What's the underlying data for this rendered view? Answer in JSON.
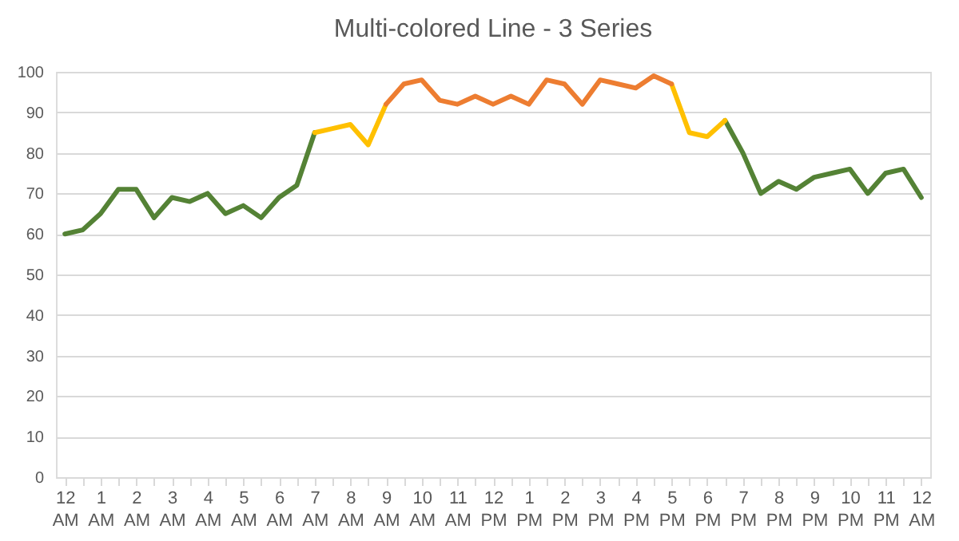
{
  "chart_data": {
    "type": "line",
    "title": "Multi-colored Line - 3 Series",
    "categories": [
      "12 AM",
      null,
      "1 AM",
      null,
      "2 AM",
      null,
      "3 AM",
      null,
      "4 AM",
      null,
      "5 AM",
      null,
      "6 AM",
      null,
      "7 AM",
      null,
      "8 AM",
      null,
      "9 AM",
      null,
      "10 AM",
      null,
      "11 AM",
      null,
      "12 PM",
      null,
      "1 PM",
      null,
      "2 PM",
      null,
      "3 PM",
      null,
      "4 PM",
      null,
      "5 PM",
      null,
      "6 PM",
      null,
      "7 PM",
      null,
      "8 PM",
      null,
      "9 PM",
      null,
      "10 PM",
      null,
      "11 PM",
      null,
      "12 AM"
    ],
    "series": [
      {
        "color": "#548235",
        "values": [
          60,
          61,
          65,
          71,
          71,
          64,
          69,
          68,
          70,
          65,
          67,
          64,
          69,
          72,
          85,
          null,
          null,
          null,
          null,
          null,
          null,
          null,
          null,
          null,
          null,
          null,
          null,
          null,
          null,
          null,
          null,
          null,
          null,
          null,
          null,
          null,
          null,
          88,
          80,
          70,
          73,
          71,
          74,
          75,
          76,
          70,
          75,
          76,
          69
        ]
      },
      {
        "color": "#ffc000",
        "values": [
          null,
          null,
          null,
          null,
          null,
          null,
          null,
          null,
          null,
          null,
          null,
          null,
          null,
          null,
          85,
          86,
          87,
          82,
          92,
          null,
          null,
          null,
          null,
          null,
          null,
          null,
          null,
          null,
          null,
          null,
          null,
          null,
          null,
          null,
          97,
          85,
          84,
          88,
          null,
          null,
          null,
          null,
          null,
          null,
          null,
          null,
          null,
          null,
          null
        ]
      },
      {
        "color": "#ed7d31",
        "values": [
          null,
          null,
          null,
          null,
          null,
          null,
          null,
          null,
          null,
          null,
          null,
          null,
          null,
          null,
          null,
          null,
          null,
          null,
          92,
          97,
          98,
          93,
          92,
          94,
          92,
          94,
          92,
          98,
          97,
          92,
          98,
          97,
          96,
          99,
          97,
          null,
          null,
          null,
          null,
          null,
          null,
          null,
          null,
          null,
          null,
          null,
          null,
          null,
          null
        ]
      }
    ],
    "ylim": [
      0,
      100
    ],
    "yticks": [
      0,
      10,
      20,
      30,
      40,
      50,
      60,
      70,
      80,
      90,
      100
    ],
    "grid": "y",
    "legend": false,
    "line_style": "solid"
  }
}
